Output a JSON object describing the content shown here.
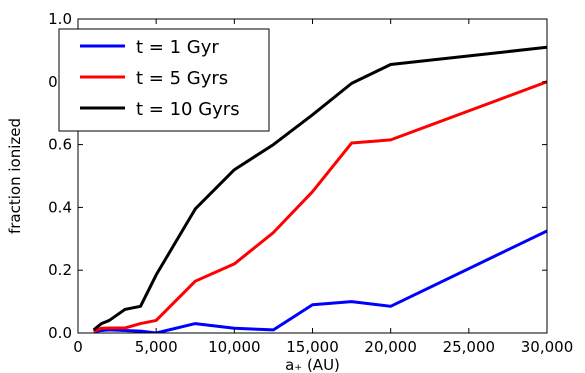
{
  "chart_data": {
    "type": "line",
    "title": "",
    "xlabel": "a₊ (AU)",
    "ylabel": "fraction ionized",
    "xlim": [
      0,
      30000
    ],
    "ylim": [
      0,
      1.0
    ],
    "x_ticks": [
      0,
      5000,
      10000,
      15000,
      20000,
      25000,
      30000
    ],
    "x_tick_labels": [
      "0",
      "5,000",
      "10,000",
      "15,000",
      "20,000",
      "25,000",
      "30,000"
    ],
    "y_ticks": [
      0,
      0.2,
      0.4,
      0.6,
      0.8,
      1.0
    ],
    "y_tick_labels": [
      "0.0",
      "0.2",
      "0.4",
      "0.6",
      "0.8",
      "1.0"
    ],
    "grid": false,
    "legend_position": "top-left",
    "series": [
      {
        "name": "t = 1 Gyr",
        "color": "#0000ff",
        "points": [
          [
            1000,
            0.005
          ],
          [
            1500,
            0.008
          ],
          [
            2000,
            0.01
          ],
          [
            3000,
            0.008
          ],
          [
            4000,
            0.006
          ],
          [
            5000,
            0.0
          ],
          [
            7500,
            0.03
          ],
          [
            10000,
            0.015
          ],
          [
            12500,
            0.01
          ],
          [
            15000,
            0.09
          ],
          [
            17500,
            0.1
          ],
          [
            20000,
            0.085
          ],
          [
            30000,
            0.325
          ]
        ]
      },
      {
        "name": "t = 5 Gyrs",
        "color": "#ff0000",
        "points": [
          [
            1000,
            0.005
          ],
          [
            1500,
            0.015
          ],
          [
            2000,
            0.016
          ],
          [
            3000,
            0.016
          ],
          [
            4000,
            0.03
          ],
          [
            5000,
            0.04
          ],
          [
            7500,
            0.165
          ],
          [
            10000,
            0.22
          ],
          [
            12500,
            0.32
          ],
          [
            15000,
            0.45
          ],
          [
            17500,
            0.605
          ],
          [
            20000,
            0.615
          ],
          [
            30000,
            0.8
          ]
        ]
      },
      {
        "name": "t = 10 Gyrs",
        "color": "#000000",
        "points": [
          [
            1000,
            0.01
          ],
          [
            1500,
            0.03
          ],
          [
            2000,
            0.04
          ],
          [
            3000,
            0.075
          ],
          [
            4000,
            0.085
          ],
          [
            5000,
            0.185
          ],
          [
            7500,
            0.395
          ],
          [
            10000,
            0.52
          ],
          [
            12500,
            0.6
          ],
          [
            15000,
            0.695
          ],
          [
            17500,
            0.795
          ],
          [
            20000,
            0.855
          ],
          [
            30000,
            0.91
          ]
        ]
      }
    ]
  }
}
